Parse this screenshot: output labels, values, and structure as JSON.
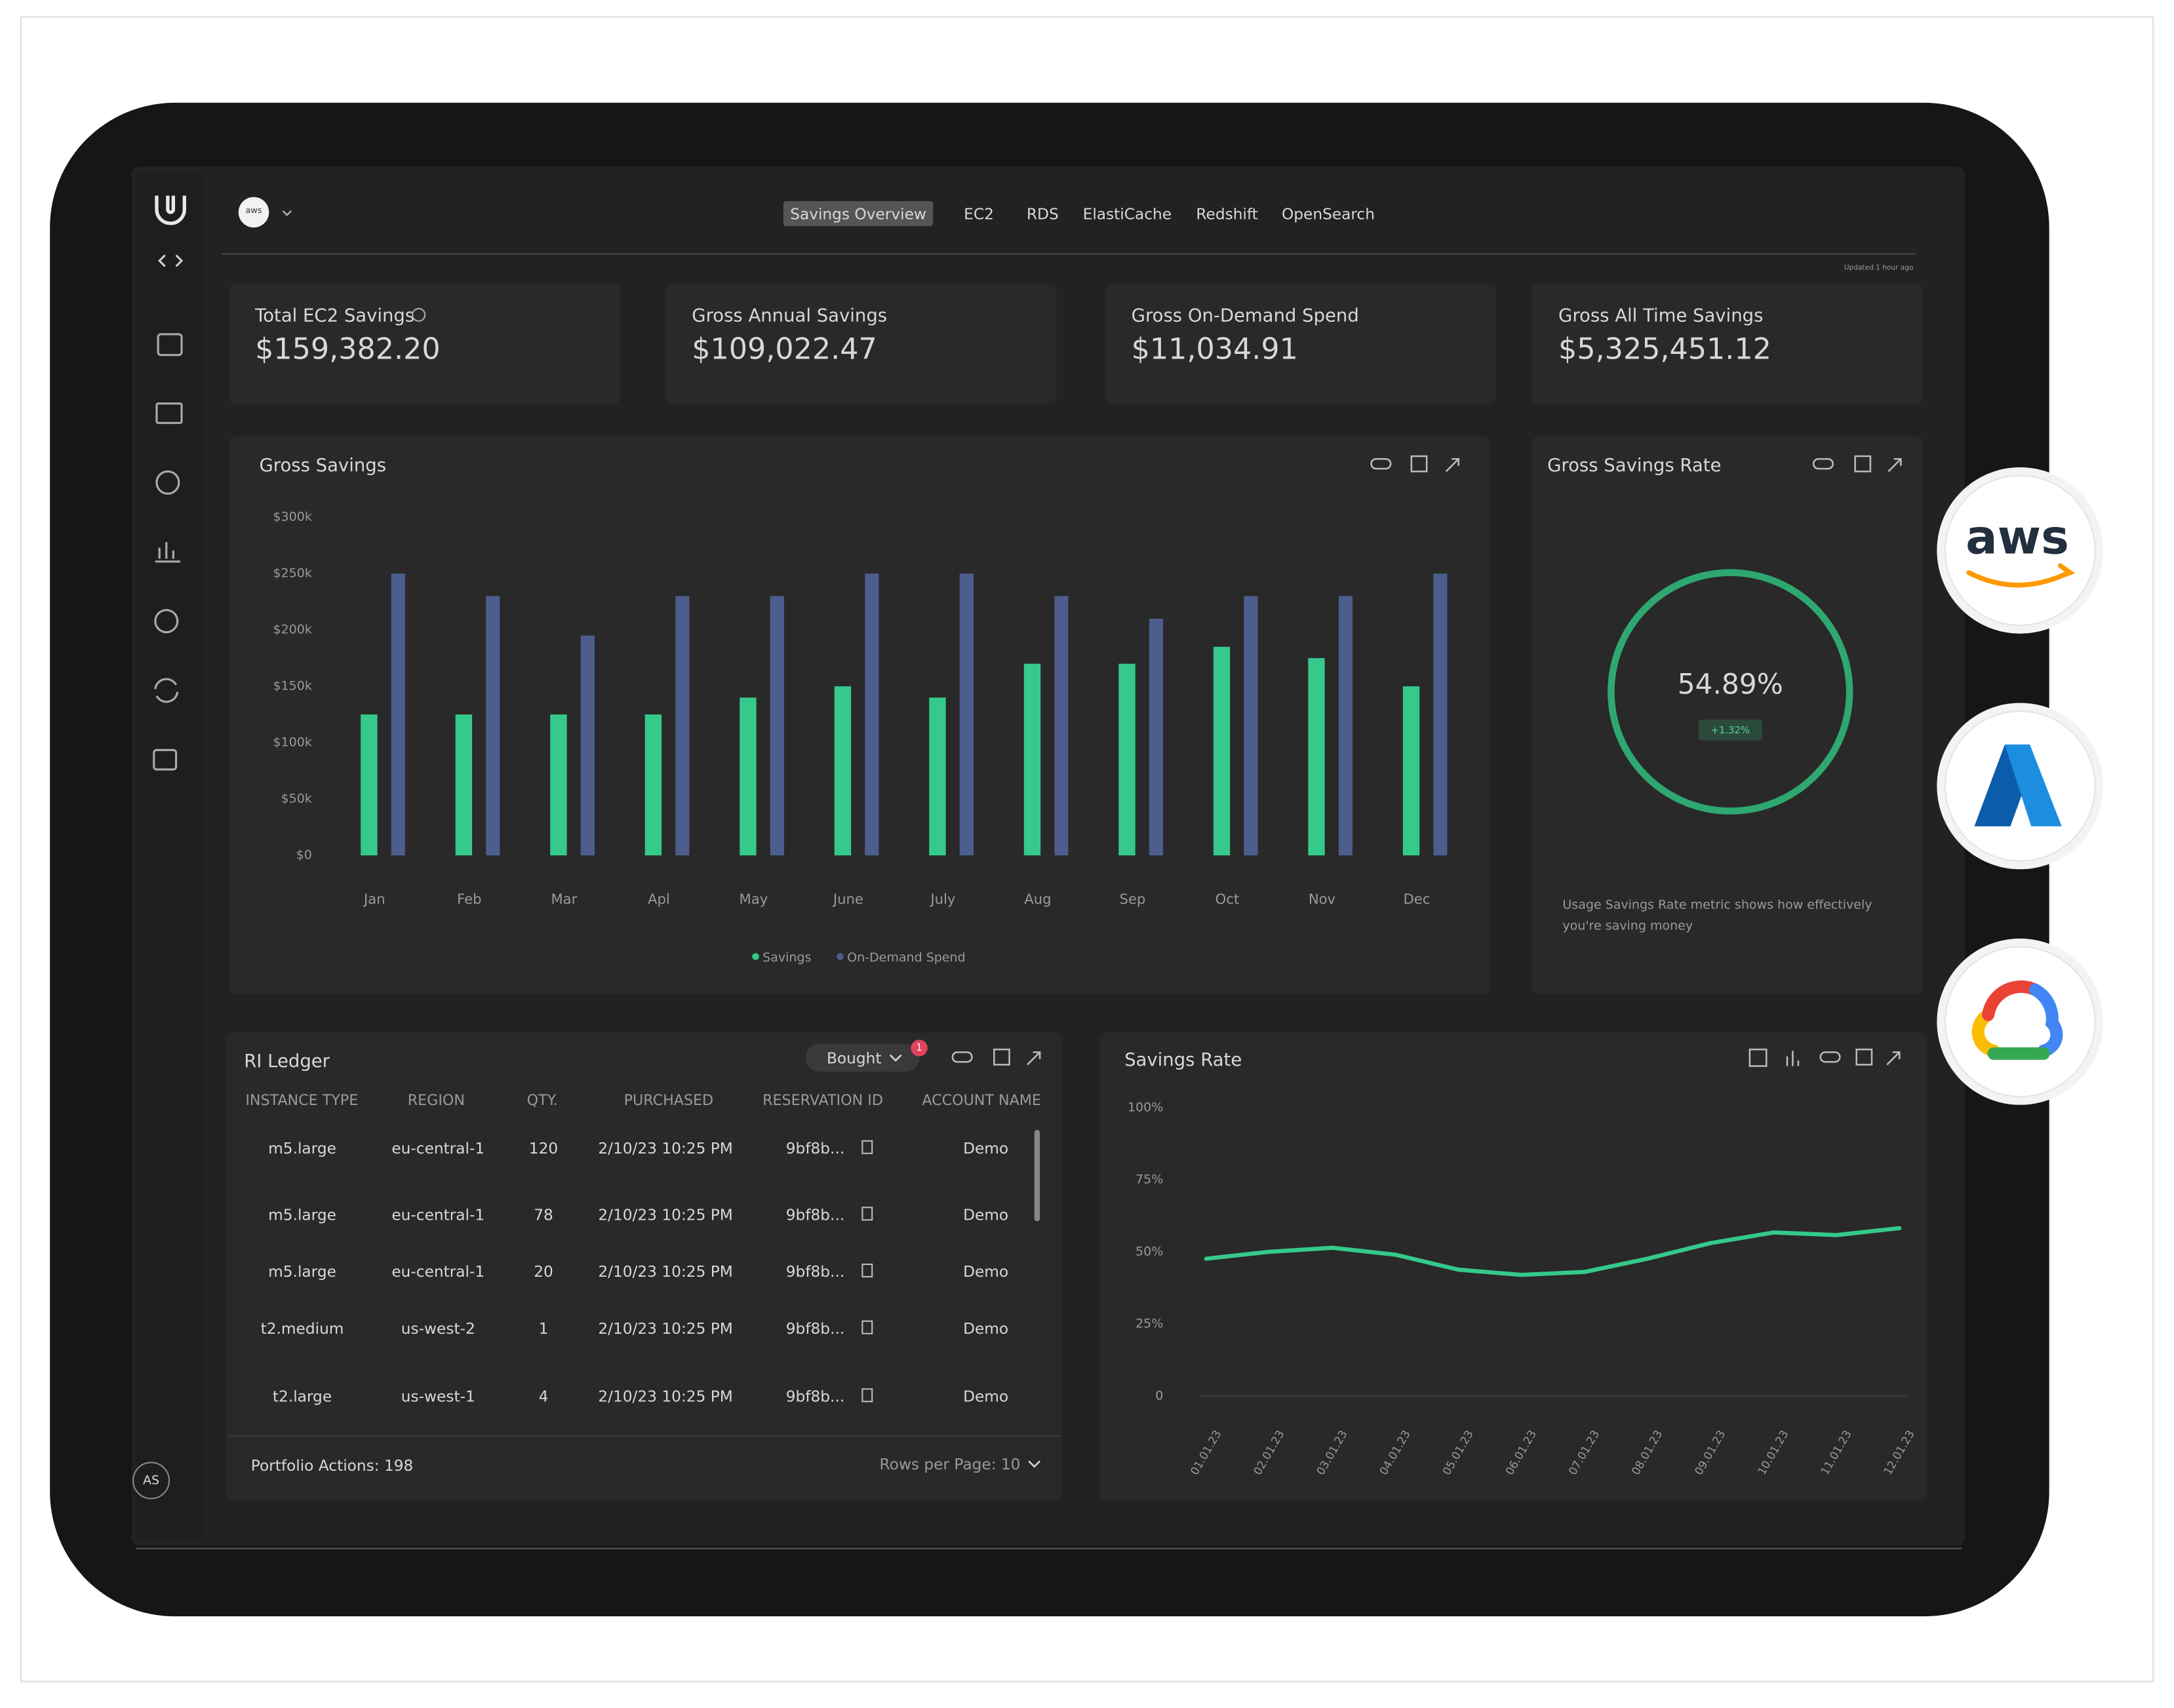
{
  "nav": {
    "tabs": [
      "Savings Overview",
      "EC2",
      "RDS",
      "ElastiCache",
      "Redshift",
      "OpenSearch"
    ],
    "active": 0,
    "updated": "Updated 1 hour ago"
  },
  "header_logo": "aws",
  "sidebar": {
    "avatar": "AS"
  },
  "kpis": [
    {
      "label": "Total EC2 Savings",
      "value": "$159,382.20"
    },
    {
      "label": "Gross Annual Savings",
      "value": "$109,022.47"
    },
    {
      "label": "Gross On-Demand Spend",
      "value": "$11,034.91"
    },
    {
      "label": "Gross All Time Savings",
      "value": "$5,325,451.12"
    }
  ],
  "chart_data": [
    {
      "type": "bar",
      "title": "Gross Savings",
      "categories": [
        "Jan",
        "Feb",
        "Mar",
        "Apl",
        "May",
        "June",
        "July",
        "Aug",
        "Sep",
        "Oct",
        "Nov",
        "Dec"
      ],
      "series": [
        {
          "name": "Savings",
          "color": "#35c98b",
          "values": [
            125000,
            125000,
            125000,
            125000,
            140000,
            150000,
            140000,
            170000,
            170000,
            185000,
            175000,
            150000
          ]
        },
        {
          "name": "On-Demand Spend",
          "color": "#4d5d8e",
          "values": [
            250000,
            230000,
            195000,
            230000,
            230000,
            250000,
            250000,
            230000,
            210000,
            230000,
            230000,
            250000
          ]
        }
      ],
      "ylim": [
        0,
        300000
      ],
      "yticks": [
        {
          "value": 0,
          "label": "$0"
        },
        {
          "value": 50000,
          "label": "$50k"
        },
        {
          "value": 100000,
          "label": "$100k"
        },
        {
          "value": 150000,
          "label": "$150k"
        },
        {
          "value": 200000,
          "label": "$200k"
        },
        {
          "value": 250000,
          "label": "$250k"
        },
        {
          "value": 300000,
          "label": "$300k"
        }
      ],
      "legend": "bottom"
    },
    {
      "type": "line",
      "title": "Savings Rate",
      "categories": [
        "01.01.23",
        "02.01.23",
        "03.01.23",
        "04.01.23",
        "05.01.23",
        "06.01.23",
        "07.01.23",
        "08.01.23",
        "09.01.23",
        "10.01.23",
        "11.01.23",
        "12.01.23"
      ],
      "values": [
        47.6,
        50,
        51.4,
        49,
        43.8,
        42,
        43,
        47.6,
        53,
        56.7,
        55.8,
        58.2
      ],
      "color": "#35c98b",
      "ylim": [
        0,
        100
      ],
      "yticks": [
        0,
        {
          "value": 25,
          "label": "25%"
        },
        {
          "value": 50,
          "label": "50%"
        },
        {
          "value": 75,
          "label": "75%"
        },
        {
          "value": 100,
          "label": "100%"
        }
      ]
    }
  ],
  "rate_card": {
    "title": "Gross Savings Rate",
    "rate": "54.89%",
    "change": "+1.32%",
    "note_lines": [
      "Usage Savings Rate metric shows how effectively",
      "you're saving money"
    ]
  },
  "ri_ledger": {
    "title": "RI Ledger",
    "filter": "Bought",
    "filter_count": 1,
    "columns": [
      "INSTANCE TYPE",
      "REGION",
      "QTY.",
      "PURCHASED",
      "RESERVATION ID",
      "ACCOUNT NAME"
    ],
    "rows": [
      [
        "m5.large",
        "eu-central-1",
        120,
        "2/10/23 10:25 PM",
        "9bf8b...",
        "Demo"
      ],
      [
        "m5.large",
        "eu-central-1",
        78,
        "2/10/23 10:25 PM",
        "9bf8b...",
        "Demo"
      ],
      [
        "m5.large",
        "eu-central-1",
        20,
        "2/10/23 10:25 PM",
        "9bf8b...",
        "Demo"
      ],
      [
        "t2.medium",
        "us-west-2",
        1,
        "2/10/23 10:25 PM",
        "9bf8b...",
        "Demo"
      ],
      [
        "t2.large",
        "us-west-1",
        4,
        "2/10/23 10:25 PM",
        "9bf8b...",
        "Demo"
      ]
    ],
    "portfolio": "Portfolio Actions: 198",
    "rows_per_page": "Rows per Page: 10"
  },
  "providers": {
    "aws": "aws"
  }
}
